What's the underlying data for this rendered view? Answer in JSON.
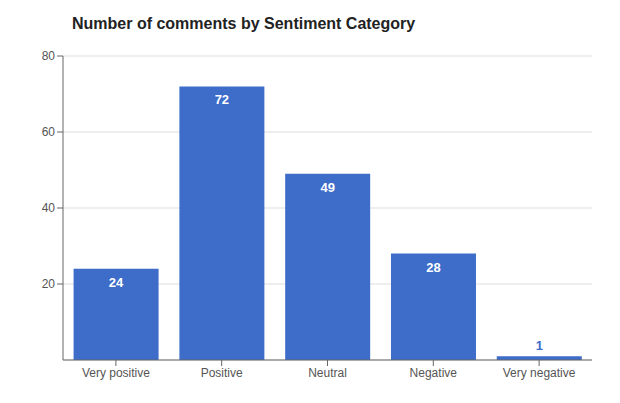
{
  "chart_data": {
    "type": "bar",
    "title": "Number of comments by Sentiment Category",
    "categories": [
      "Very positive",
      "Positive",
      "Neutral",
      "Negative",
      "Very negative"
    ],
    "values": [
      24,
      72,
      49,
      28,
      1
    ],
    "color": "#3d6cc9",
    "ylim": [
      0,
      80
    ],
    "yticks": [
      20,
      40,
      60,
      80
    ],
    "grid": true,
    "data_labels": true
  }
}
